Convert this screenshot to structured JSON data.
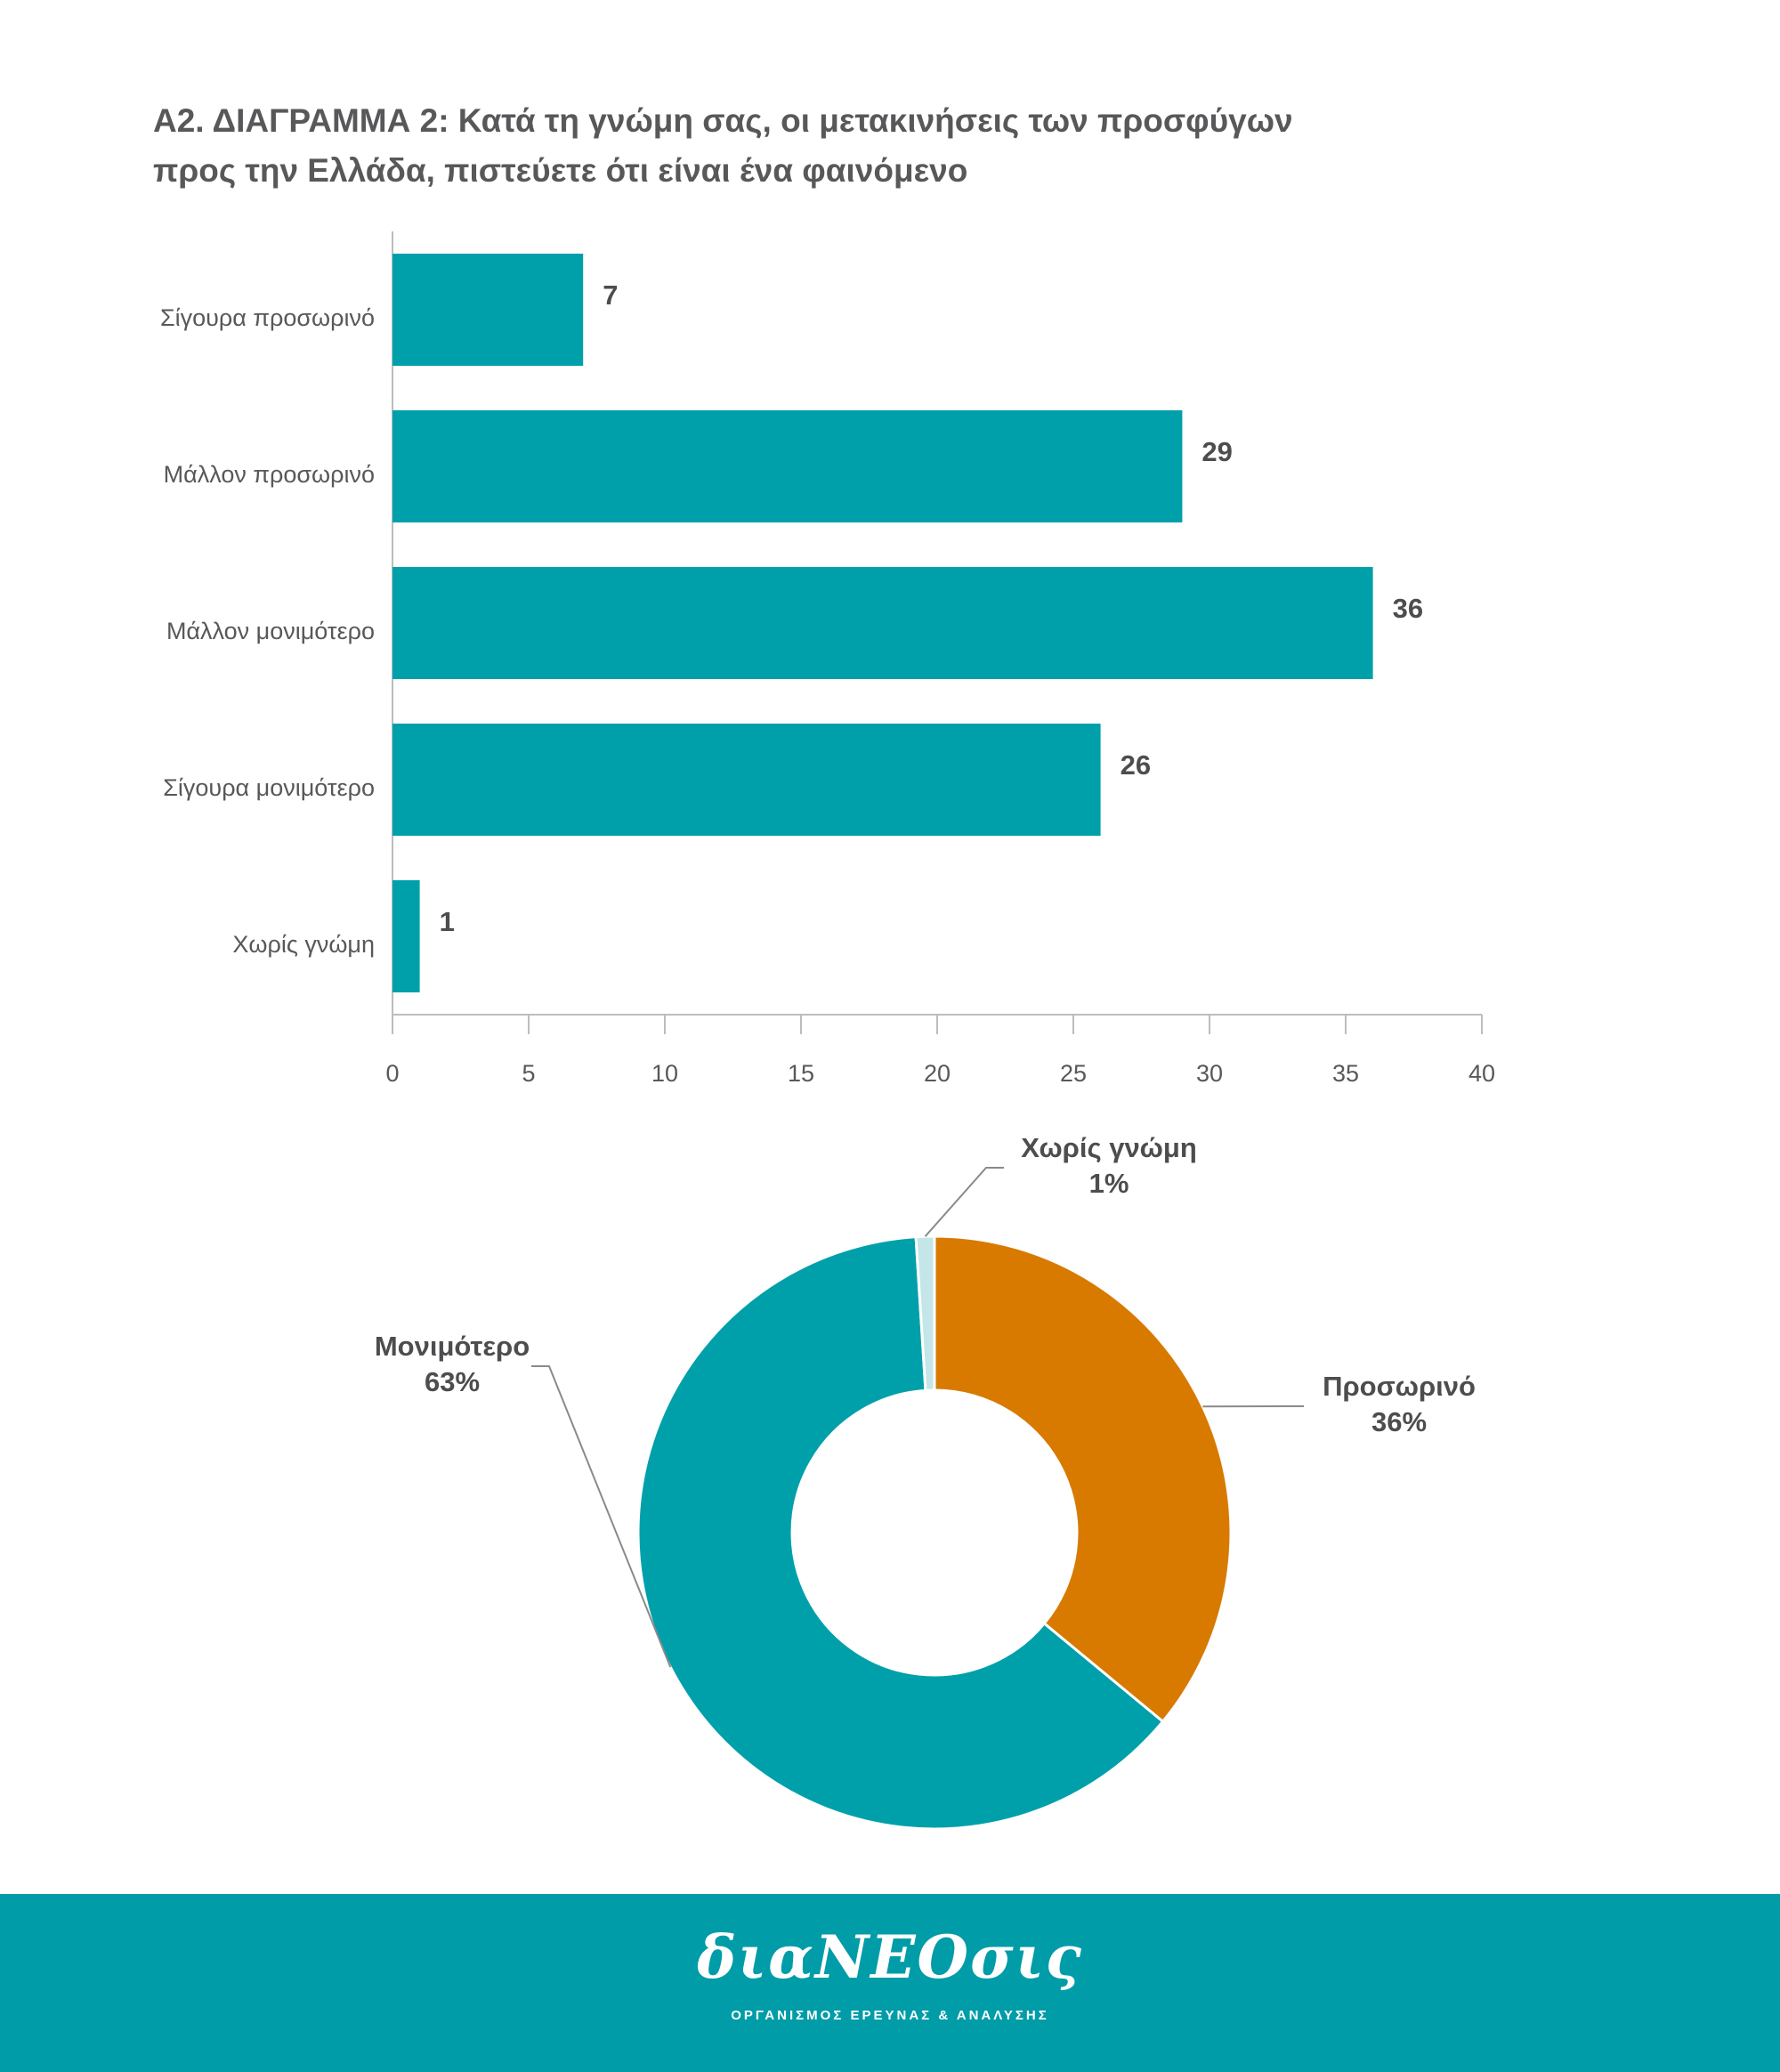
{
  "title": {
    "line1": "Α2. ΔΙΑΓΡΑΜΜΑ 2: Κατά τη γνώμη σας, οι μετακινήσεις των προσφύγων",
    "line2": "προς την Ελλάδα, πιστεύετε ότι είναι ένα φαινόμενο"
  },
  "colors": {
    "teal": "#00a0ab",
    "orange": "#d87a00",
    "light_blue": "#c4e6e9",
    "axis": "#bdbdbd",
    "footer": "#009ca8"
  },
  "chart_data": [
    {
      "type": "bar",
      "orientation": "horizontal",
      "categories": [
        "Σίγουρα προσωρινό",
        "Μάλλον προσωρινό",
        "Μάλλον μονιμότερο",
        "Σίγουρα μονιμότερο",
        "Χωρίς γνώμη"
      ],
      "values": [
        7,
        29,
        36,
        26,
        1
      ],
      "xlim": [
        0,
        40
      ],
      "xticks": [
        0,
        5,
        10,
        15,
        20,
        25,
        30,
        35,
        40
      ],
      "grid": false,
      "data_labels": true
    },
    {
      "type": "pie",
      "donut": true,
      "slices": [
        {
          "name": "Προσωρινό",
          "value": 36,
          "label": "36%"
        },
        {
          "name": "Μονιμότερο",
          "value": 63,
          "label": "63%"
        },
        {
          "name": "Χωρίς γνώμη",
          "value": 1,
          "label": "1%"
        }
      ],
      "legend": "none"
    }
  ],
  "footer": {
    "logo_text": "διαΝΕΟσις",
    "tagline": "ΟΡΓΑΝΙΣΜΟΣ ΕΡΕΥΝΑΣ & ΑΝΑΛΥΣΗΣ"
  }
}
